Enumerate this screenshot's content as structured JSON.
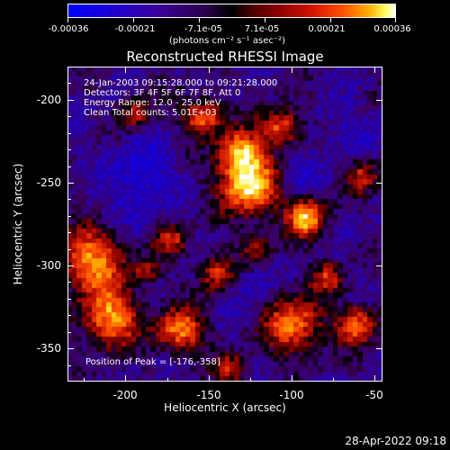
{
  "colorbar": {
    "ticks": [
      "-0.00036",
      "-0.00021",
      "-7.1e-05",
      "7.1e-05",
      "0.00021",
      "0.00036"
    ],
    "units": "(photons cm⁻² s⁻¹ asec⁻²)"
  },
  "chart_data": {
    "type": "heatmap",
    "title": "Reconstructed RHESSI Image",
    "xlabel": "Heliocentric X (arcsec)",
    "ylabel": "Heliocentric Y (arcsec)",
    "xlim": [
      -235,
      -45
    ],
    "ylim": [
      -370,
      -180
    ],
    "xticks": [
      -200,
      -150,
      -100,
      -50
    ],
    "yticks": [
      -200,
      -250,
      -300,
      -350
    ],
    "zlim": [
      -0.00036,
      0.00036
    ],
    "colormap": "blue-black-red-yellow-white",
    "peak": [
      -176,
      -358
    ],
    "annotations": {
      "time": "24-Jan-2003 09:15:28.000 to 09:21:28.000",
      "detectors": "Detectors: 3F 4F 5F 6F 7F 8F, Att 0",
      "energy": "Energy Range: 12.0 - 25.0 keV",
      "clean": "Clean     Total counts: 5.01E+03",
      "peak_label": "Position of Peak = [-176,-358]"
    }
  },
  "footer": {
    "timestamp": "28-Apr-2022 09:18"
  }
}
